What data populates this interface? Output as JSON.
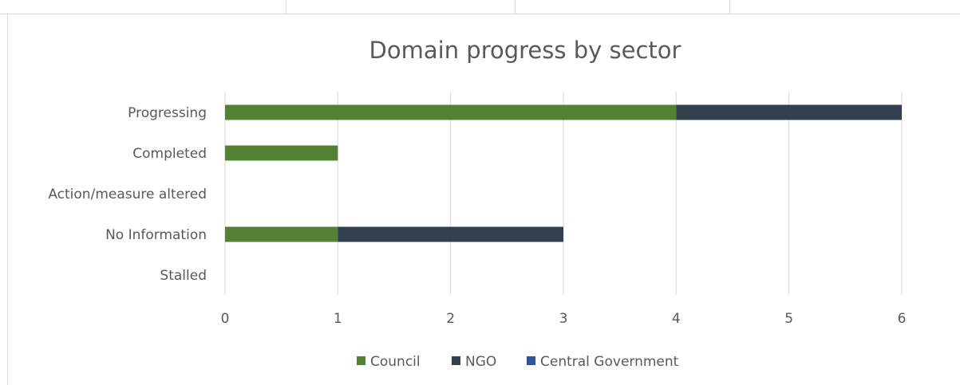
{
  "chart_data": {
    "type": "bar",
    "orientation": "horizontal",
    "stacked": true,
    "title": "Domain progress by sector",
    "categories": [
      "Progressing",
      "Completed",
      "Action/measure altered",
      "No Information",
      "Stalled"
    ],
    "series": [
      {
        "name": "Council",
        "color": "#548235",
        "values": [
          4,
          1,
          0,
          1,
          0
        ]
      },
      {
        "name": "NGO",
        "color": "#323f4f",
        "values": [
          2,
          0,
          0,
          2,
          0
        ]
      },
      {
        "name": "Central Government",
        "color": "#2f5597",
        "values": [
          0,
          0,
          0,
          0,
          0
        ]
      }
    ],
    "xlim": [
      0,
      6
    ],
    "xticks": [
      0,
      1,
      2,
      3,
      4,
      5,
      6
    ],
    "grid": true,
    "legend_position": "bottom"
  }
}
